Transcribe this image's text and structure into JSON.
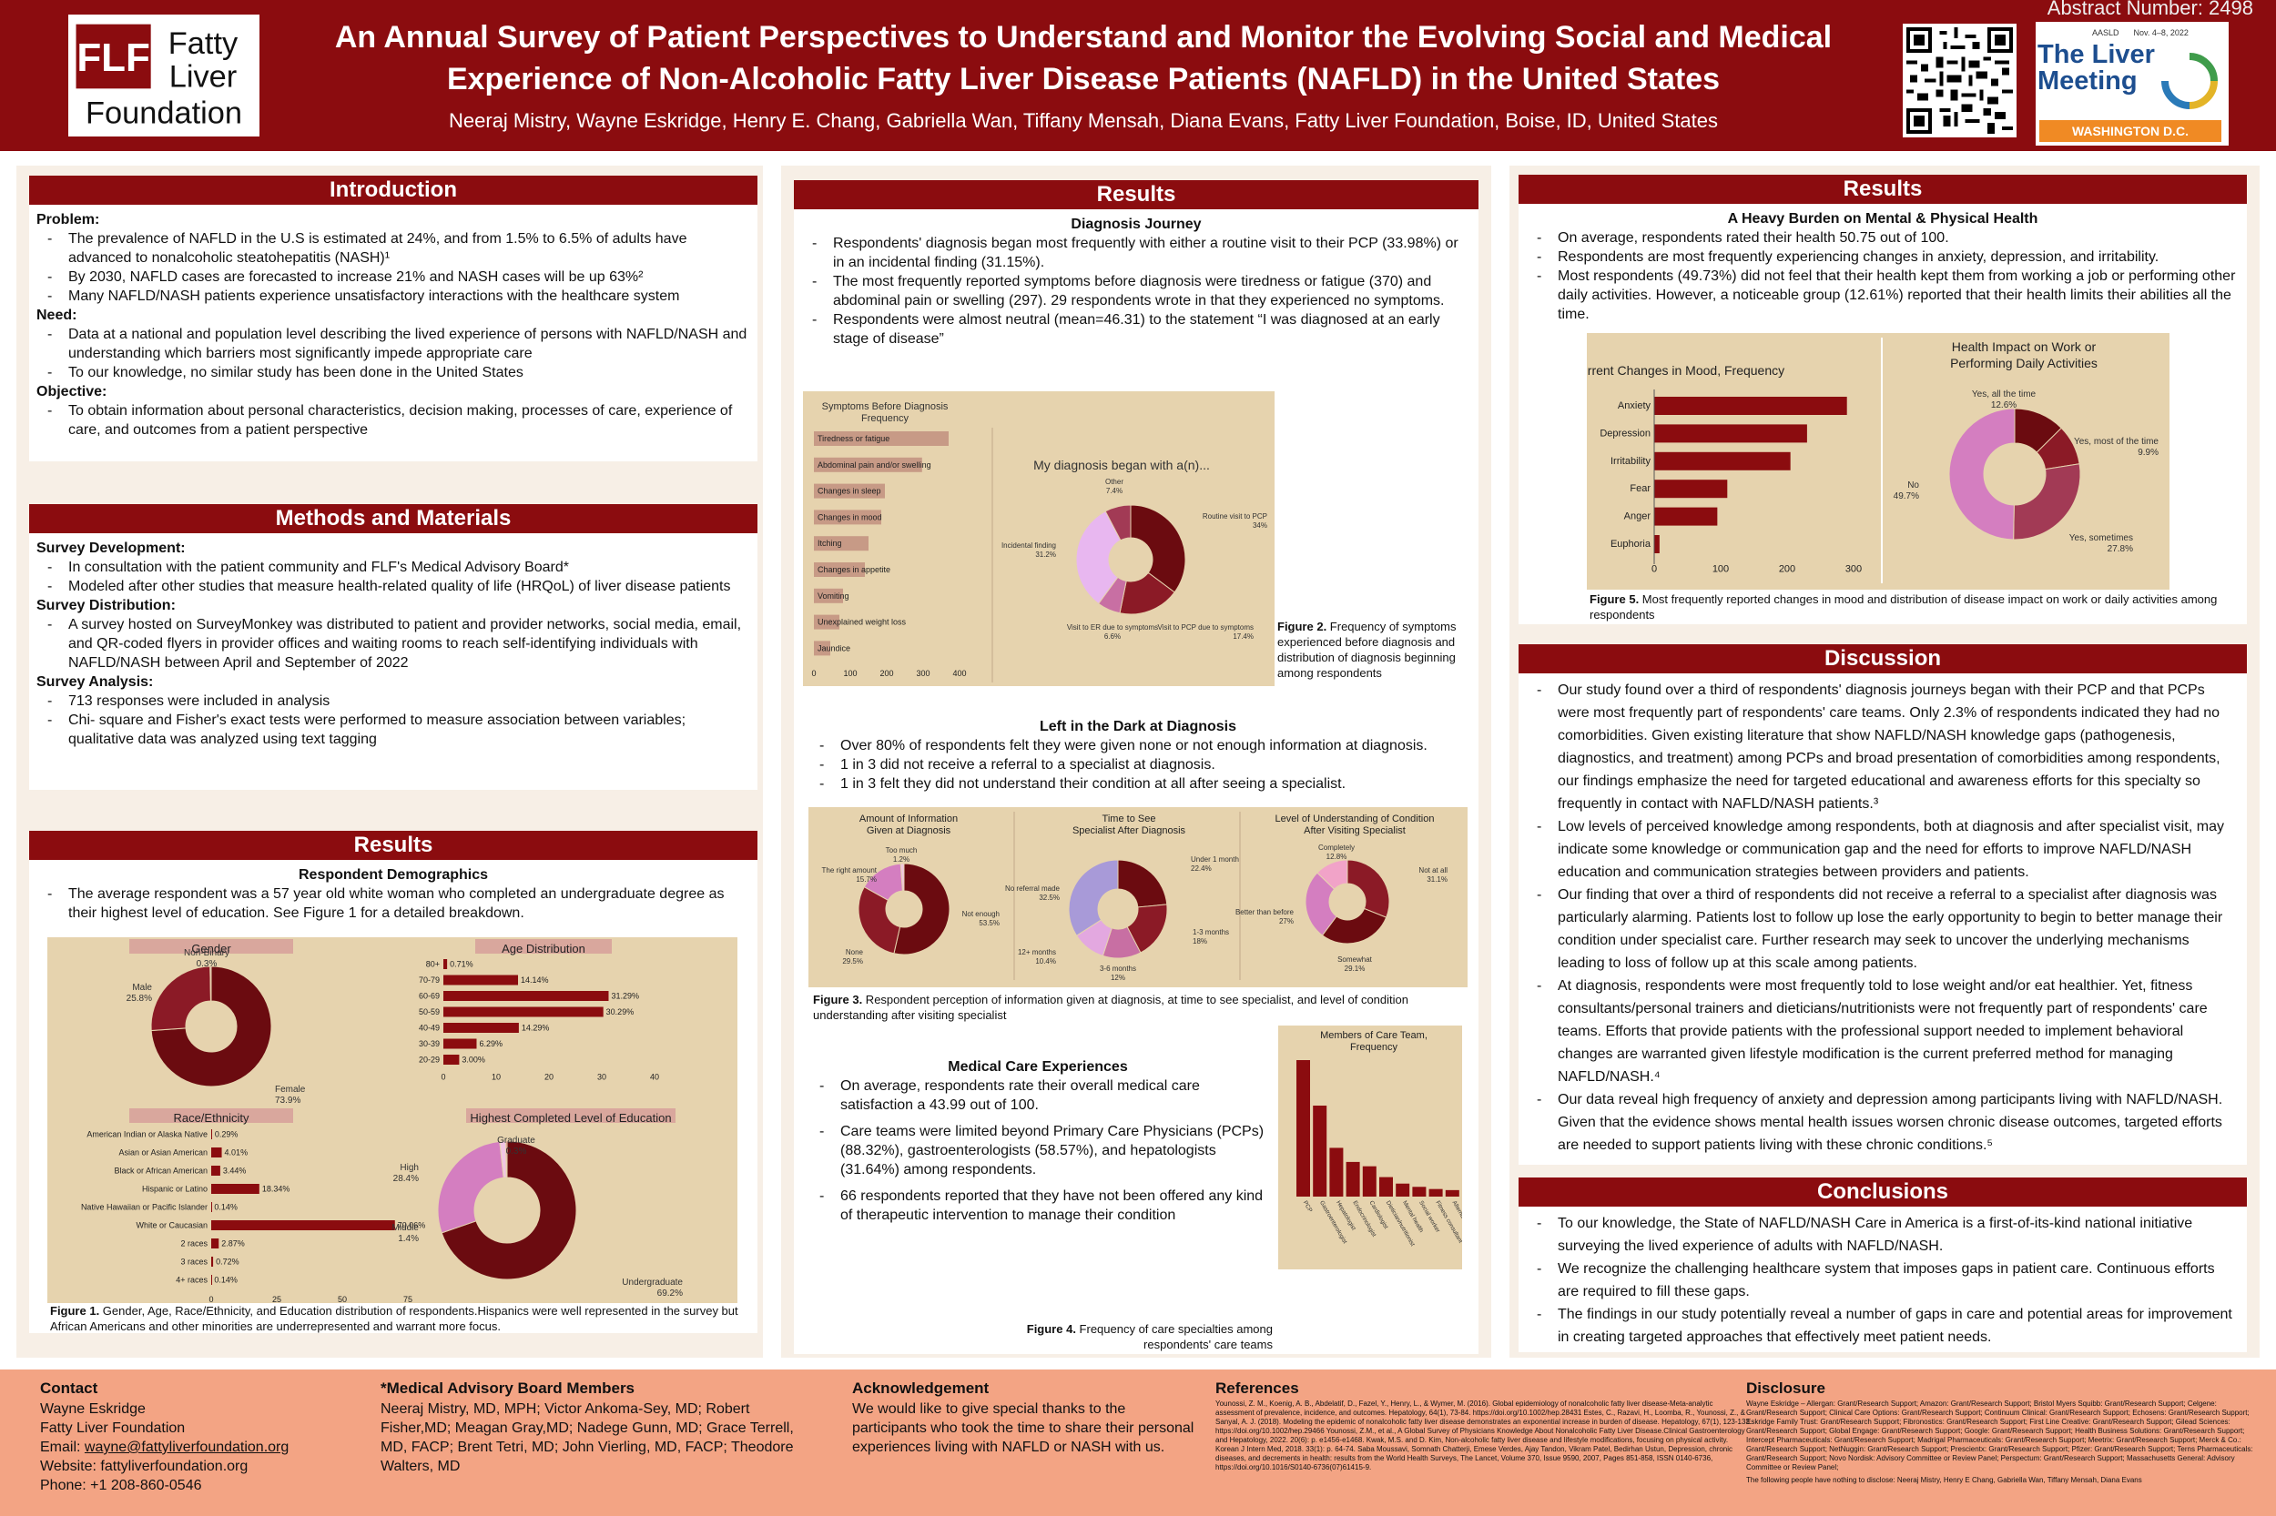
{
  "header": {
    "title_line1": "An Annual Survey of Patient Perspectives to Understand and Monitor the Evolving Social and Medical",
    "title_line2": "Experience of Non-Alcoholic Fatty Liver Disease Patients (NAFLD) in the United States",
    "authors": "Neeraj Mistry, Wayne Eskridge, Henry E. Chang, Gabriella Wan, Tiffany Mensah, Diana Evans, Fatty Liver Foundation, Boise, ID, United States",
    "abstract_number": "Abstract Number: 2498",
    "logo": {
      "line1": "Fatty",
      "line2": "Liver",
      "line3": "Foundation",
      "mark": "FLF"
    },
    "meeting": {
      "org": "AASLD",
      "dates": "Nov. 4–8, 2022",
      "name1": "The Liver",
      "name2": "Meeting",
      "city": "WASHINGTON D.C."
    }
  },
  "intro": {
    "title": "Introduction",
    "problem_h": "Problem:",
    "problem": [
      "The prevalence of NAFLD in the U.S is estimated at 24%, and from 1.5% to 6.5% of adults have advanced to nonalcoholic steatohepatitis (NASH)¹",
      "By 2030, NAFLD cases are forecasted to increase 21% and NASH cases will be up 63%²",
      "Many NAFLD/NASH patients experience unsatisfactory interactions with the healthcare system"
    ],
    "need_h": "Need:",
    "need": [
      "Data at a national and population level describing the lived experience of persons with NAFLD/NASH and understanding which barriers most significantly impede appropriate care",
      "To our knowledge, no similar study has been done in the United States"
    ],
    "objective_h": "Objective:",
    "objective": [
      "To obtain information about personal characteristics, decision making, processes of care, experience of care, and outcomes from a patient perspective"
    ]
  },
  "methods": {
    "title": "Methods and Materials",
    "dev_h": "Survey Development:",
    "dev": [
      "In consultation with the patient community and FLF's Medical Advisory Board*",
      "Modeled after other studies that measure health-related quality of life (HRQoL) of liver disease patients"
    ],
    "dist_h": "Survey Distribution:",
    "dist": [
      "A survey hosted on SurveyMonkey was distributed to patient and provider networks, social media, email, and QR-coded flyers in provider offices and waiting rooms to reach self-identifying individuals with NAFLD/NASH between April and September of 2022"
    ],
    "analysis_h": "Survey Analysis:",
    "analysis": [
      "713 responses were included in analysis",
      "Chi- square and Fisher's exact tests were performed to measure association between variables; qualitative data was analyzed using text tagging"
    ]
  },
  "results1": {
    "title": "Results",
    "subhead": "Respondent Demographics",
    "text": "The average respondent was a 57 year old white woman who completed an undergraduate degree as their highest level of education.  See Figure 1 for a detailed breakdown.",
    "caption_b": "Figure 1.",
    "caption": " Gender, Age, Race/Ethnicity, and Education distribution of respondents.Hispanics were well represented in the survey but African Americans and other minorities are underrepresented and warrant more focus."
  },
  "results2": {
    "title": "Results",
    "dj_h": "Diagnosis Journey",
    "dj": [
      "Respondents' diagnosis began most frequently with either a routine visit to their PCP (33.98%) or in an incidental finding (31.15%).",
      "The most frequently reported symptoms before diagnosis were tiredness or fatigue (370) and abdominal pain or swelling (297). 29 respondents wrote in that they experienced no symptoms.",
      "Respondents were almost neutral (mean=46.31) to the statement “I was diagnosed at an early stage of disease”"
    ],
    "fig2_b": "Figure 2.",
    "fig2": " Frequency of symptoms experienced before diagnosis and distribution of diagnosis beginning among respondents",
    "ld_h": "Left in the Dark at Diagnosis",
    "ld": [
      "Over 80% of respondents felt they were given none or not enough information at diagnosis.",
      "1 in 3 did not receive a referral to a specialist at diagnosis.",
      "1 in 3 felt they did not understand their condition at all after seeing a specialist."
    ],
    "fig3_b": "Figure  3.",
    "fig3": " Respondent perception of information given at diagnosis, at time to see specialist, and level of condition understanding after visiting specialist",
    "mc_h": "Medical Care Experiences",
    "mc": [
      "On average, respondents rate their overall medical care satisfaction a 43.99 out of 100.",
      "Care teams were limited beyond Primary Care Physicians (PCPs) (88.32%), gastroenterologists (58.57%), and hepatologists (31.64%) among respondents.",
      "66 respondents reported that they have not been offered any kind of therapeutic intervention to manage their condition"
    ],
    "fig4_b": "Figure 4.",
    "fig4": " Frequency of care specialties  among respondents' care teams"
  },
  "results3": {
    "title": "Results",
    "subhead": "A Heavy Burden on Mental & Physical Health",
    "items": [
      "On average, respondents rated their health 50.75 out of 100.",
      "Respondents are most frequently experiencing changes in anxiety, depression, and irritability.",
      "Most respondents (49.73%) did not feel that their health kept them from working a job or performing other daily activities. However, a noticeable group (12.61%) reported that their health limits their abilities all the time."
    ],
    "fig5_b": "Figure 5.",
    "fig5": " Most frequently reported changes in mood and distribution of disease impact on work or daily activities among respondents"
  },
  "discussion": {
    "title": "Discussion",
    "items": [
      "Our study found over a third of respondents' diagnosis journeys began with their PCP and that PCPs were most frequently part of respondents' care teams. Only 2.3% of respondents indicated they had no comorbidities. Given existing literature that show NAFLD/NASH knowledge gaps (pathogenesis, diagnostics, and treatment) among PCPs and broad presentation of comorbidities among respondents, our findings emphasize the need for targeted educational and awareness efforts for this specialty so frequently in contact with NAFLD/NASH patients.³",
      "Low levels of perceived knowledge among respondents, both at diagnosis and after specialist visit, may indicate some knowledge or communication gap and the need for efforts to improve NAFLD/NASH education and communication strategies between providers and patients.",
      "Our finding that over a third of respondents did not receive a referral to a specialist after diagnosis was particularly alarming. Patients lost to follow up lose the early opportunity to begin to better manage their condition under specialist care. Further research may seek to uncover the underlying mechanisms leading to loss of follow up at this scale among patients.",
      "At diagnosis, respondents were most frequently told to lose weight and/or eat healthier. Yet, fitness consultants/personal trainers and dieticians/nutritionists were not frequently part of respondents' care teams. Efforts that provide patients with the professional support needed to implement behavioral changes are warranted given lifestyle modification is the current preferred method for managing NAFLD/NASH.⁴",
      "Our data reveal high frequency of anxiety and depression among participants living with NAFLD/NASH. Given that the evidence shows mental health issues worsen chronic disease outcomes, targeted efforts are needed to support patients living with these chronic conditions.⁵"
    ]
  },
  "conclusions": {
    "title": "Conclusions",
    "items": [
      "To our knowledge, the State of NAFLD/NASH Care in America is a first-of-its-kind national initiative surveying the lived experience of adults with NAFLD/NASH.",
      "We recognize the challenging healthcare system that imposes gaps in patient care. Continuous efforts are required to fill these gaps.",
      "The findings in our study potentially reveal a number of gaps in care and potential areas for improvement in creating targeted approaches that effectively meet patient needs."
    ]
  },
  "footer": {
    "contact_h": "Contact",
    "contact": [
      "Wayne Eskridge",
      "Fatty Liver Foundation"
    ],
    "email_label": "Email: ",
    "email": "wayne@fattyliverfoundation.org",
    "website": "Website: fattyliverfoundation.org",
    "phone": "Phone: +1 208-860-0546",
    "board_h": "*Medical Advisory Board Members",
    "board": "Neeraj Mistry, MD, MPH;  Victor Ankoma-Sey, MD; Robert Fisher,MD; Meagan Gray,MD; Nadege Gunn, MD; Grace Terrell, MD, FACP; Brent Tetri, MD; John Vierling, MD, FACP; Theodore Walters, MD",
    "ack_h": "Acknowledgement",
    "ack": "We would like to give special thanks to the participants who took the time to share their personal experiences living with NAFLD or NASH with us.",
    "ref_h": "References",
    "refs": "Younossi, Z. M., Koenig, A. B., Abdelatif, D., Fazel, Y., Henry, L., & Wymer, M. (2016). Global epidemiology of nonalcoholic fatty liver disease-Meta-analytic assessment of prevalence, incidence, and outcomes. Hepatology, 64(1), 73-84. https://doi.org/10.1002/hep.28431 Estes, C., Razavi, H., Loomba, R., Younossi, Z., & Sanyal, A. J. (2018). Modeling the epidemic of nonalcoholic fatty liver disease demonstrates an exponential increase in burden of disease. Hepatology, 67(1), 123-133. https://doi.org/10.1002/hep.29466 Younossi, Z.M., et al., A Global Survey of Physicians Knowledge About Nonalcoholic Fatty Liver Disease.Clinical Gastroenterology and Hepatology, 2022. 20(6): p. e1456-e1468. Kwak, M.S. and D. Kim, Non-alcoholic fatty liver disease and lifestyle modifications, focusing on physical activity. Korean J Intern Med, 2018. 33(1): p. 64-74. Saba Moussavi, Somnath Chatterji, Emese Verdes, Ajay Tandon, Vikram Patel, Bedirhan Ustun, Depression, chronic diseases, and decrements in health: results from the World Health Surveys, The Lancet, Volume 370, Issue 9590, 2007, Pages 851-858, ISSN 0140-6736, https://doi.org/10.1016/S0140-6736(07)61415-9.",
    "disc_h": "Disclosure",
    "disc": "Wayne Eskridge – Allergan: Grant/Research Support; Amazon: Grant/Research Support; Bristol Myers Squibb: Grant/Research Support; Celgene: Grant/Research Support; Clinical Care Options: Grant/Research Support; Continuum Clinical: Grant/Research Support; Echosens: Grant/Research Support; Eskridge Family Trust: Grant/Research Support; Fibronostics: Grant/Research Support; First Line Creative: Grant/Research Support; Gilead Sciences: Grant/Research Support; Global Engage: Grant/Research Support; Google: Grant/Research Support; Health Business Solutions: Grant/Research Support; Intercept Pharmaceuticals: Grant/Research Support; Madrigal Pharmaceuticals: Grant/Research Support; Meetrix: Grant/Research Support; Merck & Co.: Grant/Research Support; NetNuggin: Grant/Research Support; Prescientx: Grant/Research Support; Pfizer: Grant/Research Support; Terns Pharmaceuticals: Grant/Research Support; Novo Nordisk: Advisory Committee or Review Panel; Perspectum: Grant/Research Support; Massachusetts General: Advisory Committee or Review Panel;",
    "disc2": "The following people have nothing to disclose: Neeraj Mistry, Henry E Chang, Gabriella Wan, Tiffany Mensah, Diana Evans"
  },
  "chart_data": [
    {
      "id": "gender",
      "type": "pie",
      "title": "Gender",
      "categories": [
        "Female",
        "Male",
        "Non-Binary"
      ],
      "values": [
        73.9,
        25.8,
        0.3
      ],
      "labels": [
        "Female 73.9%",
        "Male 25.8%",
        "Non-Binary 0.3%"
      ]
    },
    {
      "id": "age",
      "type": "bar",
      "title": "Age Distribution",
      "categories": [
        "80+",
        "70-79",
        "60-69",
        "50-59",
        "40-49",
        "30-39",
        "20-29"
      ],
      "values": [
        0.71,
        14.14,
        31.29,
        30.29,
        14.29,
        6.29,
        3.0
      ],
      "labels": [
        "0.71%",
        "14.14%",
        "31.29%",
        "30.29%",
        "14.29%",
        "6.29%",
        "3.00%"
      ],
      "ticks": [
        "0",
        "10",
        "20",
        "30",
        "40"
      ],
      "xlim": [
        0,
        40
      ]
    },
    {
      "id": "race",
      "type": "bar",
      "title": "Race/Ethnicity",
      "categories": [
        "American Indian or Alaska Native",
        "Asian or Asian American",
        "Black or African American",
        "Hispanic or Latino",
        "Native Hawaiian or Pacific Islander",
        "White or Caucasian",
        "2 races",
        "3 races",
        "4+ races"
      ],
      "values": [
        0.29,
        4.01,
        3.44,
        18.34,
        0.14,
        70.06,
        2.87,
        0.72,
        0.14
      ],
      "labels": [
        "0.29%",
        "4.01%",
        "3.44%",
        "18.34%",
        "0.14%",
        "70.06%",
        "2.87%",
        "0.72%",
        "0.14%"
      ],
      "ticks": [
        "0",
        "25",
        "50",
        "75"
      ],
      "xlim": [
        0,
        75
      ]
    },
    {
      "id": "education",
      "type": "pie",
      "title": "Highest Completed Level of Education",
      "categories": [
        "Undergraduate",
        "High",
        "Middle",
        "Graduate"
      ],
      "values": [
        69.2,
        28.4,
        1.4,
        0.3
      ],
      "labels": [
        "Undergraduate 69.2%",
        "High 28.4%",
        "Middle 1.4%",
        "Graduate 0.3%"
      ]
    },
    {
      "id": "symptoms",
      "type": "bar",
      "title": "Symptoms Before Diagnosis, Frequency",
      "categories": [
        "Tiredness or fatigue",
        "Abdominal pain and/or swelling",
        "Changes in sleep",
        "Changes in mood",
        "Itching",
        "Changes in appetite",
        "Vomiting",
        "Unexplained weight loss",
        "Jaundice"
      ],
      "values": [
        370,
        297,
        195,
        185,
        150,
        140,
        80,
        70,
        45
      ],
      "ticks": [
        "0",
        "100",
        "200",
        "300",
        "400"
      ],
      "xlim": [
        0,
        400
      ]
    },
    {
      "id": "diagnosis",
      "type": "pie",
      "title": "My diagnosis began with a(n)...",
      "categories": [
        "Routine visit to PCP",
        "Visit to PCP due to symptoms",
        "Visit to ER due to symptoms",
        "Incidental finding",
        "Other"
      ],
      "values": [
        34,
        17.4,
        6.6,
        31.2,
        7.4
      ],
      "labels": [
        "Routine visit to PCP 34%",
        "Visit to PCP due to symptoms 17.4%",
        "Visit to ER due to symptoms 6.6%",
        "Incidental finding 31.2%",
        "Other 7.4%"
      ]
    },
    {
      "id": "information",
      "type": "pie",
      "title": "Amount of Information Given at Diagnosis",
      "categories": [
        "Not enough",
        "None",
        "The right amount",
        "Too much"
      ],
      "values": [
        53.5,
        29.5,
        15.7,
        1.2
      ],
      "labels": [
        "Not enough 53.5%",
        "None 29.5%",
        "The right amount 15.7%",
        "Too much 1.2%"
      ]
    },
    {
      "id": "specialist",
      "type": "pie",
      "title": "Time to See Specialist After Diagnosis",
      "categories": [
        "Under 1 month",
        "1-3 months",
        "3-6 months",
        "12+ months",
        "No referral made"
      ],
      "values": [
        22.4,
        18,
        12,
        10.4,
        32.5
      ],
      "labels": [
        "Under 1 month 22.4%",
        "1-3 months 18%",
        "3-6 months 12%",
        "12+ months 10.4%",
        "No referral made 32.5%"
      ]
    },
    {
      "id": "understanding",
      "type": "pie",
      "title": "Level of Understanding of Condition After Visiting Specialist",
      "categories": [
        "Not at all",
        "Somewhat",
        "Better than before",
        "Completely"
      ],
      "values": [
        31.1,
        29.1,
        27,
        12.8
      ],
      "labels": [
        "Not at all 31.1%",
        "Somewhat 29.1%",
        "Better than before 27%",
        "Completely 12.8%"
      ]
    },
    {
      "id": "careteam",
      "type": "bar",
      "title": "Members of Care Team, Frequency",
      "categories": [
        "PCP",
        "Gastroenterologist",
        "Hepatologist",
        "Endocrinologist",
        "Cardiologist",
        "Dietician/nutritionist",
        "Mental health",
        "Social worker",
        "Fitness consultant",
        "Alternative therapy"
      ],
      "values": [
        630,
        420,
        225,
        160,
        140,
        90,
        60,
        45,
        35,
        30
      ]
    },
    {
      "id": "mood",
      "type": "bar",
      "title": "Current Changes in Mood, Frequency",
      "categories": [
        "Anxiety",
        "Depression",
        "Irritability",
        "Fear",
        "Anger",
        "Euphoria"
      ],
      "values": [
        290,
        230,
        205,
        110,
        95,
        8
      ],
      "ticks": [
        "0",
        "100",
        "200",
        "300"
      ],
      "xlim": [
        0,
        300
      ]
    },
    {
      "id": "impact",
      "type": "pie",
      "title": "Health Impact on Work or Performing Daily Activities",
      "categories": [
        "Yes, all the time",
        "Yes, most of the time",
        "Yes, sometimes",
        "No"
      ],
      "values": [
        12.6,
        9.9,
        27.8,
        49.7
      ],
      "labels": [
        "Yes, all the time 12.6%",
        "Yes, most of the time 9.9%",
        "Yes, sometimes 27.8%",
        "No 49.7%"
      ]
    }
  ]
}
